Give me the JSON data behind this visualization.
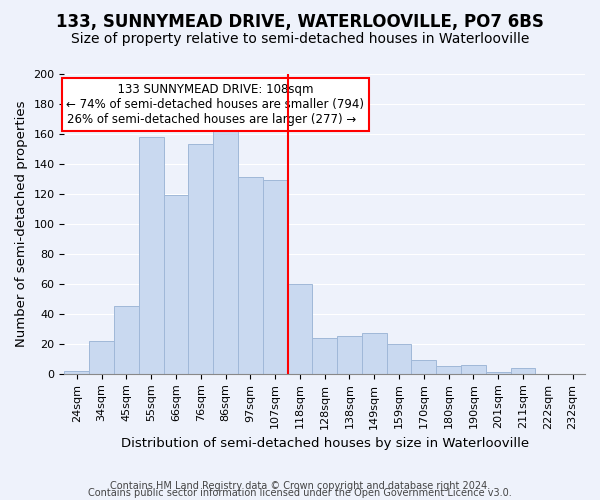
{
  "title": "133, SUNNYMEAD DRIVE, WATERLOOVILLE, PO7 6BS",
  "subtitle": "Size of property relative to semi-detached houses in Waterlooville",
  "xlabel": "Distribution of semi-detached houses by size in Waterlooville",
  "ylabel": "Number of semi-detached properties",
  "footer1": "Contains HM Land Registry data © Crown copyright and database right 2024.",
  "footer2": "Contains public sector information licensed under the Open Government Licence v3.0.",
  "bin_labels": [
    "24sqm",
    "34sqm",
    "45sqm",
    "55sqm",
    "66sqm",
    "76sqm",
    "86sqm",
    "97sqm",
    "107sqm",
    "118sqm",
    "128sqm",
    "138sqm",
    "149sqm",
    "159sqm",
    "170sqm",
    "180sqm",
    "190sqm",
    "201sqm",
    "211sqm",
    "222sqm",
    "232sqm"
  ],
  "bar_values": [
    2,
    22,
    45,
    158,
    119,
    153,
    165,
    131,
    129,
    60,
    24,
    25,
    27,
    20,
    9,
    5,
    6,
    1,
    4,
    0,
    0
  ],
  "bar_color": "#c9d9f0",
  "bar_edge_color": "#a0b8d8",
  "vline_x_offset": 8.5,
  "vline_color": "red",
  "annotation_title": "133 SUNNYMEAD DRIVE: 108sqm",
  "annotation_line1": "← 74% of semi-detached houses are smaller (794)",
  "annotation_line2": "26% of semi-detached houses are larger (277) →",
  "annotation_box_edge": "red",
  "ylim": [
    0,
    200
  ],
  "yticks": [
    0,
    20,
    40,
    60,
    80,
    100,
    120,
    140,
    160,
    180,
    200
  ],
  "background_color": "#eef2fb",
  "grid_color": "#ffffff",
  "title_fontsize": 12,
  "subtitle_fontsize": 10,
  "axis_label_fontsize": 9.5,
  "tick_fontsize": 8,
  "footer_fontsize": 7
}
